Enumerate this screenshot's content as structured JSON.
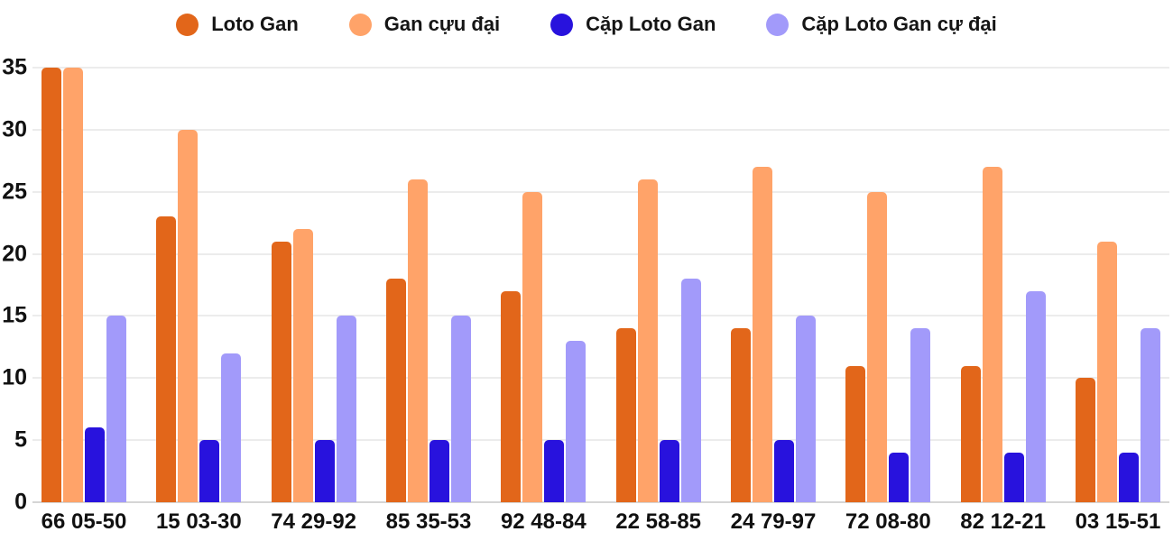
{
  "colors": {
    "background": "#ffffff",
    "gridline": "#ececec",
    "baseline": "#d5d5d5",
    "text": "#111111"
  },
  "chart_data": {
    "type": "bar",
    "title": "",
    "xlabel": "",
    "ylabel": "",
    "grid": true,
    "legend_position": "top",
    "ylim": [
      0,
      35
    ],
    "yticks": [
      0,
      5,
      10,
      15,
      20,
      25,
      30,
      35
    ],
    "categories": [
      "66 05-50",
      "15 03-30",
      "74 29-92",
      "85 35-53",
      "92 48-84",
      "22 58-85",
      "24 79-97",
      "72 08-80",
      "82 12-21",
      "03 15-51"
    ],
    "series": [
      {
        "name": "Loto Gan",
        "color": "#e2661a",
        "values": [
          35,
          23,
          21,
          18,
          17,
          14,
          14,
          11,
          11,
          10
        ]
      },
      {
        "name": "Gan cựu đại",
        "color": "#ffa369",
        "values": [
          35,
          30,
          22,
          26,
          25,
          26,
          27,
          25,
          27,
          21
        ]
      },
      {
        "name": "Cặp Loto Gan",
        "color": "#2812dd",
        "values": [
          6,
          5,
          5,
          5,
          5,
          5,
          5,
          4,
          4,
          4
        ]
      },
      {
        "name": "Cặp Loto Gan cự đại",
        "color": "#a29afa",
        "values": [
          15,
          12,
          15,
          15,
          13,
          18,
          15,
          14,
          17,
          14
        ]
      }
    ]
  }
}
